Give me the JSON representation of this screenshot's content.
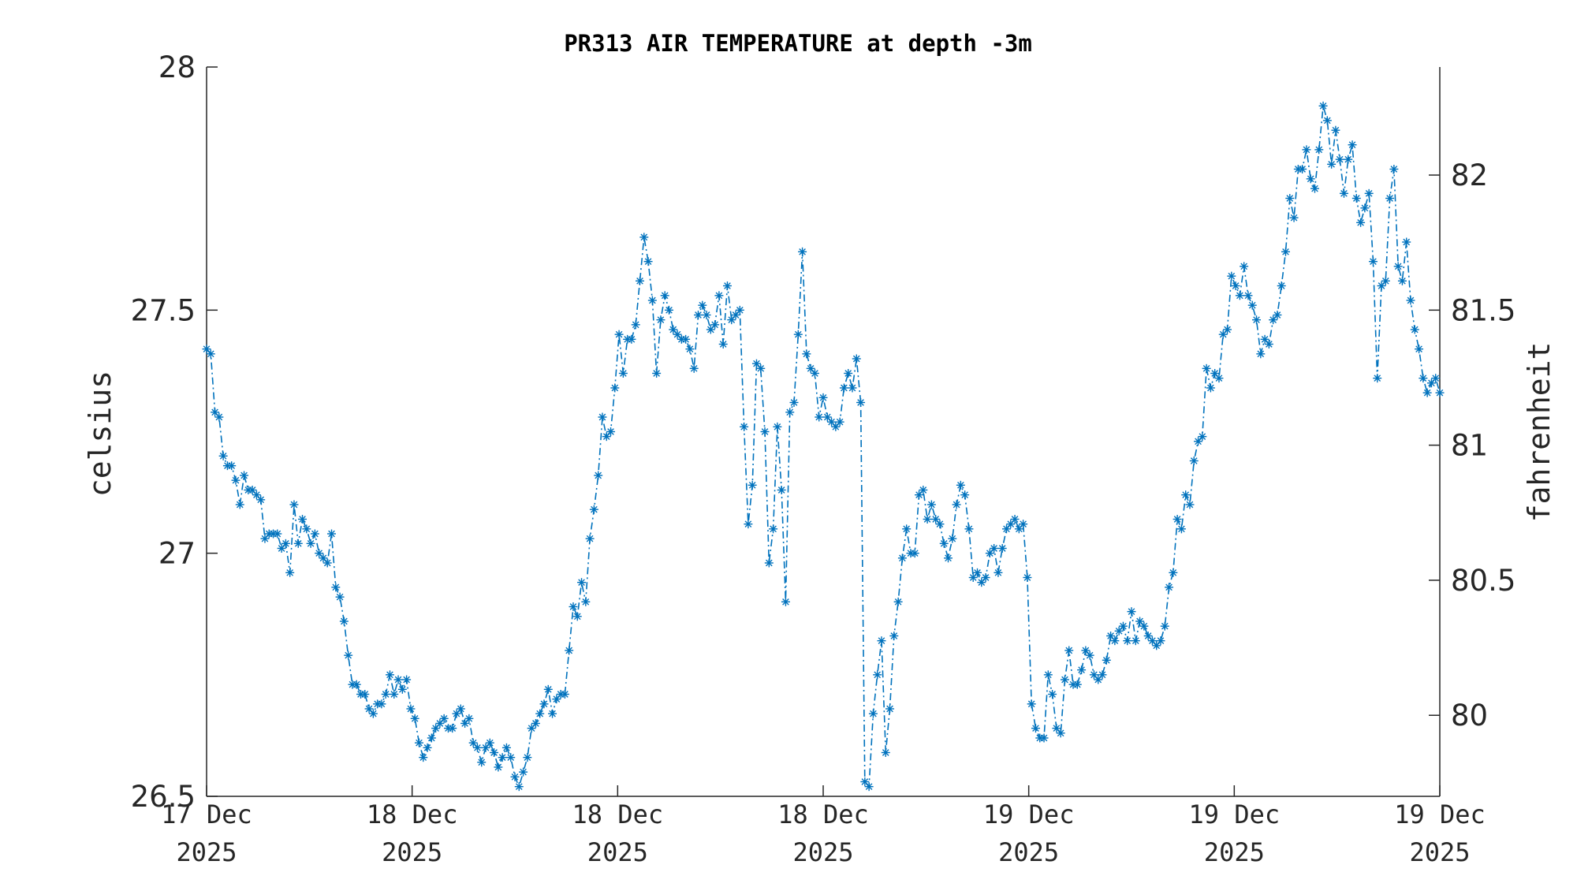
{
  "chart_data": {
    "type": "line",
    "title": "PR313 AIR TEMPERATURE at depth -3m",
    "ylabel": "celsius",
    "ylabel_right": "fahrenheit",
    "ylim": [
      26.5,
      28.0
    ],
    "ylim_right": [
      79.7,
      82.4
    ],
    "yticks": [
      "26.5",
      "27",
      "27.5",
      "28"
    ],
    "yticks_right": [
      "80",
      "80.5",
      "81",
      "81.5",
      "82"
    ],
    "x_range": [
      "17 Dec 2025 00:00",
      "19 Dec 2025 12:00"
    ],
    "xticks": [
      {
        "day": "17 Dec",
        "year": "2025"
      },
      {
        "day": "18 Dec",
        "year": "2025"
      },
      {
        "day": "18 Dec",
        "year": "2025"
      },
      {
        "day": "18 Dec",
        "year": "2025"
      },
      {
        "day": "19 Dec",
        "year": "2025"
      },
      {
        "day": "19 Dec",
        "year": "2025"
      },
      {
        "day": "19 Dec",
        "year": "2025"
      }
    ],
    "series": [
      {
        "color": "#0072BD",
        "line_style": "dash-dot",
        "marker": "asterisk",
        "values": [
          27.42,
          27.41,
          27.29,
          27.28,
          27.2,
          27.18,
          27.18,
          27.15,
          27.1,
          27.16,
          27.13,
          27.13,
          27.12,
          27.11,
          27.03,
          27.04,
          27.04,
          27.04,
          27.01,
          27.02,
          26.96,
          27.1,
          27.02,
          27.07,
          27.05,
          27.02,
          27.04,
          27.0,
          26.99,
          26.98,
          27.04,
          26.93,
          26.91,
          26.86,
          26.79,
          26.73,
          26.73,
          26.71,
          26.71,
          26.68,
          26.67,
          26.69,
          26.69,
          26.71,
          26.75,
          26.71,
          26.74,
          26.72,
          26.74,
          26.68,
          26.66,
          26.61,
          26.58,
          26.6,
          26.62,
          26.64,
          26.65,
          26.66,
          26.64,
          26.64,
          26.67,
          26.68,
          26.65,
          26.66,
          26.61,
          26.6,
          26.57,
          26.6,
          26.61,
          26.59,
          26.56,
          26.58,
          26.6,
          26.58,
          26.54,
          26.52,
          26.55,
          26.58,
          26.64,
          26.65,
          26.67,
          26.69,
          26.72,
          26.67,
          26.7,
          26.71,
          26.71,
          26.8,
          26.89,
          26.87,
          26.94,
          26.9,
          27.03,
          27.09,
          27.16,
          27.28,
          27.24,
          27.25,
          27.34,
          27.45,
          27.37,
          27.44,
          27.44,
          27.47,
          27.56,
          27.65,
          27.6,
          27.52,
          27.37,
          27.48,
          27.53,
          27.5,
          27.46,
          27.45,
          27.44,
          27.44,
          27.42,
          27.38,
          27.49,
          27.51,
          27.49,
          27.46,
          27.47,
          27.53,
          27.43,
          27.55,
          27.48,
          27.49,
          27.5,
          27.26,
          27.06,
          27.14,
          27.39,
          27.38,
          27.25,
          26.98,
          27.05,
          27.26,
          27.13,
          26.9,
          27.29,
          27.31,
          27.45,
          27.62,
          27.41,
          27.38,
          27.37,
          27.28,
          27.32,
          27.28,
          27.27,
          27.26,
          27.27,
          27.34,
          27.37,
          27.34,
          27.4,
          27.31,
          26.53,
          26.52,
          26.67,
          26.75,
          26.82,
          26.59,
          26.68,
          26.83,
          26.9,
          26.99,
          27.05,
          27.0,
          27.0,
          27.12,
          27.13,
          27.07,
          27.1,
          27.07,
          27.06,
          27.02,
          26.99,
          27.03,
          27.1,
          27.14,
          27.12,
          27.05,
          26.95,
          26.96,
          26.94,
          26.95,
          27.0,
          27.01,
          26.96,
          27.01,
          27.05,
          27.06,
          27.07,
          27.05,
          27.06,
          26.95,
          26.69,
          26.64,
          26.62,
          26.62,
          26.75,
          26.71,
          26.64,
          26.63,
          26.74,
          26.8,
          26.73,
          26.73,
          26.76,
          26.8,
          26.79,
          26.75,
          26.74,
          26.75,
          26.78,
          26.83,
          26.82,
          26.84,
          26.85,
          26.82,
          26.88,
          26.82,
          26.86,
          26.85,
          26.83,
          26.82,
          26.81,
          26.82,
          26.85,
          26.93,
          26.96,
          27.07,
          27.05,
          27.12,
          27.1,
          27.19,
          27.23,
          27.24,
          27.38,
          27.34,
          27.37,
          27.36,
          27.45,
          27.46,
          27.57,
          27.55,
          27.53,
          27.59,
          27.53,
          27.51,
          27.48,
          27.41,
          27.44,
          27.43,
          27.48,
          27.49,
          27.55,
          27.62,
          27.73,
          27.69,
          27.79,
          27.79,
          27.83,
          27.77,
          27.75,
          27.83,
          27.92,
          27.89,
          27.8,
          27.87,
          27.81,
          27.74,
          27.81,
          27.84,
          27.73,
          27.68,
          27.71,
          27.74,
          27.6,
          27.36,
          27.55,
          27.56,
          27.73,
          27.79,
          27.59,
          27.56,
          27.64,
          27.52,
          27.46,
          27.42,
          27.36,
          27.33,
          27.35,
          27.36,
          27.33
        ]
      }
    ]
  }
}
